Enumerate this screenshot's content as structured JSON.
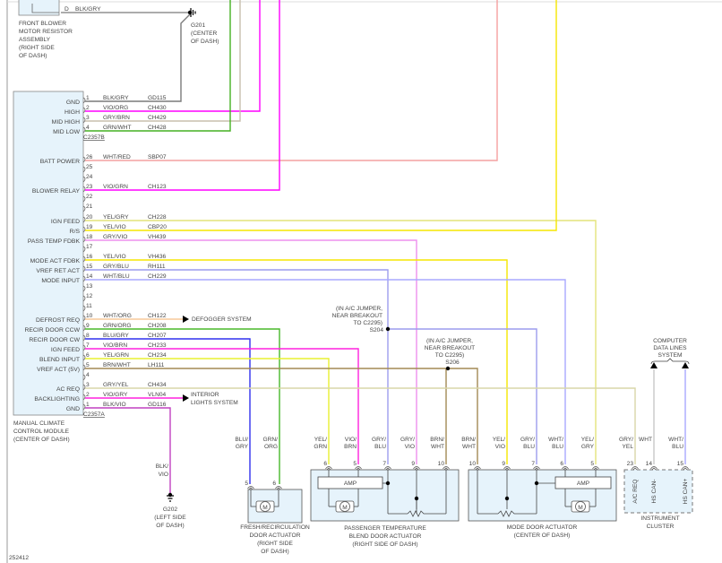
{
  "figure_id": "252412",
  "blower_resistor": {
    "pin": "D",
    "wire": "BLK/GRY",
    "name_lines": [
      "FRONT BLOWER",
      "MOTOR RESISTOR",
      "ASSEMBLY",
      "(RIGHT SIDE",
      "OF DASH)"
    ]
  },
  "g201": {
    "lines": [
      "G201",
      "(CENTER",
      "OF DASH)"
    ]
  },
  "g202": {
    "wire": [
      "BLK/",
      "VIO"
    ],
    "lines": [
      "G202",
      "(LEFT SIDE",
      "OF DASH)"
    ]
  },
  "module": {
    "name_lines": [
      "MANUAL CLIMATE",
      "CONTROL MODULE",
      "(CENTER OF DASH)"
    ],
    "connector_b": "C2357B",
    "connector_a": "C2357A",
    "pins_b": [
      {
        "pin": "1",
        "label": "GND",
        "wire": "BLK/GRY",
        "circuit": "GD115"
      },
      {
        "pin": "2",
        "label": "HIGH",
        "wire": "VIO/ORG",
        "circuit": "CH430"
      },
      {
        "pin": "3",
        "label": "MID HIGH",
        "wire": "GRY/BRN",
        "circuit": "CH429"
      },
      {
        "pin": "4",
        "label": "MID LOW",
        "wire": "GRN/WHT",
        "circuit": "CH428"
      }
    ],
    "pins_a": [
      {
        "pin": "26",
        "label": "BATT POWER",
        "wire": "WHT/RED",
        "circuit": "SBP07"
      },
      {
        "pin": "25",
        "label": "",
        "wire": "",
        "circuit": ""
      },
      {
        "pin": "24",
        "label": "",
        "wire": "",
        "circuit": ""
      },
      {
        "pin": "23",
        "label": "BLOWER RELAY",
        "wire": "VIO/GRN",
        "circuit": "CH123"
      },
      {
        "pin": "22",
        "label": "",
        "wire": "",
        "circuit": ""
      },
      {
        "pin": "21",
        "label": "",
        "wire": "",
        "circuit": ""
      },
      {
        "pin": "20",
        "label": "IGN FEED",
        "wire": "YEL/GRY",
        "circuit": "CH228"
      },
      {
        "pin": "19",
        "label": "R/S",
        "wire": "YEL/VIO",
        "circuit": "CBP20"
      },
      {
        "pin": "18",
        "label": "PASS TEMP FDBK",
        "wire": "GRY/VIO",
        "circuit": "VH439"
      },
      {
        "pin": "17",
        "label": "",
        "wire": "",
        "circuit": ""
      },
      {
        "pin": "16",
        "label": "MODE ACT FDBK",
        "wire": "YEL/VIO",
        "circuit": "VH436"
      },
      {
        "pin": "15",
        "label": "VREF RET ACT",
        "wire": "GRY/BLU",
        "circuit": "RH111"
      },
      {
        "pin": "14",
        "label": "MODE INPUT",
        "wire": "WHT/BLU",
        "circuit": "CH229"
      },
      {
        "pin": "13",
        "label": "",
        "wire": "",
        "circuit": ""
      },
      {
        "pin": "12",
        "label": "",
        "wire": "",
        "circuit": ""
      },
      {
        "pin": "11",
        "label": "",
        "wire": "",
        "circuit": ""
      },
      {
        "pin": "10",
        "label": "DEFROST REQ",
        "wire": "WHT/ORG",
        "circuit": "CH122"
      },
      {
        "pin": "9",
        "label": "RECIR DOOR CCW",
        "wire": "GRN/ORG",
        "circuit": "CH208"
      },
      {
        "pin": "8",
        "label": "RECIR DOOR CW",
        "wire": "BLU/GRY",
        "circuit": "CH207"
      },
      {
        "pin": "7",
        "label": "IGN FEED",
        "wire": "VIO/BRN",
        "circuit": "CH233"
      },
      {
        "pin": "6",
        "label": "BLEND INPUT",
        "wire": "YEL/GRN",
        "circuit": "CH234"
      },
      {
        "pin": "5",
        "label": "VREF ACT (5V)",
        "wire": "BRN/WHT",
        "circuit": "LH111"
      },
      {
        "pin": "4",
        "label": "",
        "wire": "",
        "circuit": ""
      },
      {
        "pin": "3",
        "label": "AC REQ",
        "wire": "GRY/YEL",
        "circuit": "CH434"
      },
      {
        "pin": "2",
        "label": "BACKLIGHTING",
        "wire": "VIO/GRY",
        "circuit": "VLN04"
      },
      {
        "pin": "1",
        "label": "GND",
        "wire": "BLK/VIO",
        "circuit": "GD116"
      }
    ]
  },
  "defogger": [
    "DEFOGGER SYSTEM"
  ],
  "interior_lights": [
    "INTERIOR",
    "LIGHTS SYSTEM"
  ],
  "splices": [
    {
      "id": "S204",
      "lines": [
        "(IN A/C JUMPER,",
        "NEAR BREAKOUT",
        "TO C2295)"
      ]
    },
    {
      "id": "S206",
      "lines": [
        "(IN A/C JUMPER,",
        "NEAR BREAKOUT",
        "TO C2295)"
      ]
    }
  ],
  "data_lines": [
    "COMPUTER",
    "DATA LINES",
    "SYSTEM"
  ],
  "components": {
    "fresh": {
      "name_lines": [
        "FRESH/RECIRCULATION",
        "DOOR ACTUATOR",
        "(RIGHT SIDE",
        "OF DASH)"
      ],
      "motor": "M",
      "pins": [
        {
          "pin": "5",
          "wire": [
            "BLU/",
            "GRY"
          ]
        },
        {
          "pin": "6",
          "wire": [
            "GRN/",
            "ORG"
          ]
        }
      ]
    },
    "pass": {
      "name_lines": [
        "PASSENGER TEMPERATURE",
        "BLEND DOOR ACTUATOR",
        "(RIGHT SIDE OF DASH)"
      ],
      "amp": "AMP",
      "motor": "M",
      "pins": [
        {
          "pin": "6",
          "wire": [
            "YEL/",
            "GRN"
          ]
        },
        {
          "pin": "5",
          "wire": [
            "VIO/",
            "BRN"
          ]
        },
        {
          "pin": "7",
          "wire": [
            "GRY/",
            "BLU"
          ]
        },
        {
          "pin": "9",
          "wire": [
            "GRY/",
            "VIO"
          ]
        },
        {
          "pin": "10",
          "wire": [
            "BRN/",
            "WHT"
          ]
        }
      ]
    },
    "mode": {
      "name_lines": [
        "MODE DOOR ACTUATOR",
        "(CENTER OF DASH)"
      ],
      "amp": "AMP",
      "motor": "M",
      "pins": [
        {
          "pin": "10",
          "wire": [
            "BRN/",
            "WHT"
          ]
        },
        {
          "pin": "9",
          "wire": [
            "YEL/",
            "VIO"
          ]
        },
        {
          "pin": "7",
          "wire": [
            "GRY/",
            "BLU"
          ]
        },
        {
          "pin": "6",
          "wire": [
            "WHT/",
            "BLU"
          ]
        },
        {
          "pin": "5",
          "wire": [
            "YEL/",
            "GRY"
          ]
        }
      ]
    },
    "cluster": {
      "name_lines": [
        "INSTRUMENT",
        "CLUSTER"
      ],
      "pins": [
        {
          "pin": "23",
          "wire": [
            "GRY/",
            "YEL"
          ],
          "function": "A/C REQ"
        },
        {
          "pin": "14",
          "wire": [
            "WHT"
          ],
          "function": "HS CAN-"
        },
        {
          "pin": "15",
          "wire": [
            "WHT/",
            "BLU"
          ],
          "function": "HS CAN+"
        }
      ]
    }
  },
  "wire_colors": {
    "BLK/GRY": "#7a7a7a",
    "VIO/ORG": "#ff00ff",
    "GRY/BRN": "#c8bfae",
    "GRN/WHT": "#44b022",
    "WHT/RED": "#f4a0a0",
    "VIO/GRN": "#ff00ff",
    "YEL/GRY": "#e4e47a",
    "YEL/VIO": "#f5e600",
    "GRY/VIO": "#ee90ee",
    "GRY/BLU": "#9c9cee",
    "WHT/BLU": "#a8a8ff",
    "WHT/ORG": "#f7c89a",
    "GRN/ORG": "#48b82a",
    "BLU/GRY": "#3030ee",
    "VIO/BRN": "#ff22dd",
    "YEL/GRN": "#e8f030",
    "BRN/WHT": "#a38a55",
    "GRY/YEL": "#d8d6a8",
    "VIO/GRY": "#ff22dd",
    "BLK/VIO": "#c040c0",
    "WHT": "#c8c8c8",
    "module_fill": "#e6f3fb"
  }
}
